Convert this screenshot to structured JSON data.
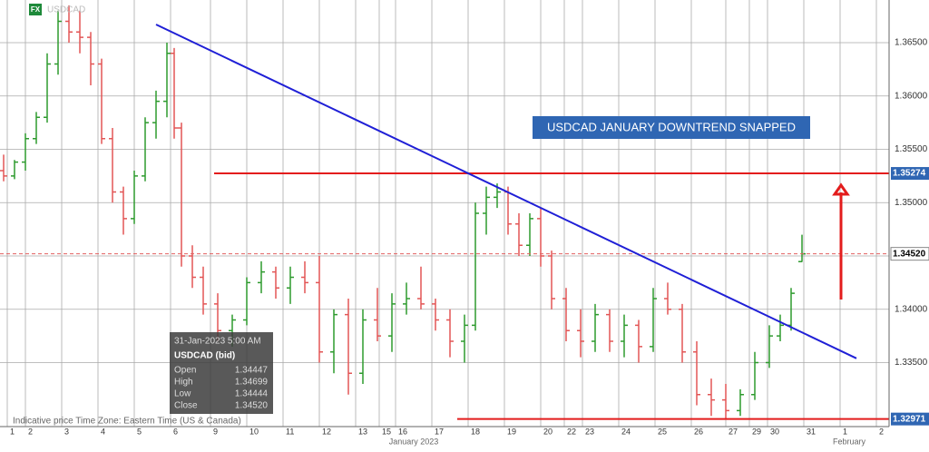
{
  "chart_data": {
    "type": "ohlc",
    "symbol": "USDCAD",
    "badge": "FX",
    "annotation": "USDCAD JANUARY DOWNTREND SNAPPED",
    "footer": "Indicative price   Time Zone: Eastern Time (US & Canada)",
    "month_labels": [
      {
        "value": 11.2,
        "label": "January 2023"
      },
      {
        "value": 23.2,
        "label": "February"
      }
    ],
    "xlim": [
      -0.2,
      24.3
    ],
    "ylim": [
      1.329,
      1.369
    ],
    "grid": true,
    "xticks": [
      {
        "value": 0,
        "label": "1"
      },
      {
        "value": 0.5,
        "label": "2"
      },
      {
        "value": 1.5,
        "label": "3"
      },
      {
        "value": 2.5,
        "label": "4"
      },
      {
        "value": 3.5,
        "label": "5"
      },
      {
        "value": 4.5,
        "label": "6"
      },
      {
        "value": 5.6,
        "label": "9"
      },
      {
        "value": 6.6,
        "label": "10"
      },
      {
        "value": 7.6,
        "label": "11"
      },
      {
        "value": 8.6,
        "label": "12"
      },
      {
        "value": 9.6,
        "label": "13"
      },
      {
        "value": 10.25,
        "label": "15"
      },
      {
        "value": 10.7,
        "label": "16"
      },
      {
        "value": 11.7,
        "label": "17"
      },
      {
        "value": 12.7,
        "label": "18"
      },
      {
        "value": 13.7,
        "label": "19"
      },
      {
        "value": 14.7,
        "label": "20"
      },
      {
        "value": 15.35,
        "label": "22"
      },
      {
        "value": 15.85,
        "label": "23"
      },
      {
        "value": 16.85,
        "label": "24"
      },
      {
        "value": 17.85,
        "label": "25"
      },
      {
        "value": 18.85,
        "label": "26"
      },
      {
        "value": 19.8,
        "label": "27"
      },
      {
        "value": 20.45,
        "label": "29"
      },
      {
        "value": 20.95,
        "label": "30"
      },
      {
        "value": 21.95,
        "label": "31"
      },
      {
        "value": 22.95,
        "label": "1"
      },
      {
        "value": 23.95,
        "label": "2"
      }
    ],
    "yticks": [
      {
        "value": 1.335,
        "label": "1.33500"
      },
      {
        "value": 1.34,
        "label": "1.34000"
      },
      {
        "value": 1.345,
        "label": "1.34500"
      },
      {
        "value": 1.35,
        "label": "1.35000"
      },
      {
        "value": 1.355,
        "label": "1.35500"
      },
      {
        "value": 1.36,
        "label": "1.36000"
      },
      {
        "value": 1.365,
        "label": "1.36500"
      }
    ],
    "up_color": "#2e9a2e",
    "down_color": "#e25555",
    "ohlc": {
      "x": [
        -0.1,
        0.2,
        0.5,
        0.8,
        1.1,
        1.4,
        1.7,
        2.0,
        2.3,
        2.6,
        2.9,
        3.2,
        3.5,
        3.8,
        4.1,
        4.4,
        4.6,
        4.8,
        5.1,
        5.4,
        5.8,
        6.2,
        6.6,
        7.0,
        7.4,
        7.8,
        8.2,
        8.6,
        9.0,
        9.4,
        9.8,
        10.2,
        10.6,
        11.0,
        11.4,
        11.8,
        12.2,
        12.6,
        12.9,
        13.2,
        13.5,
        13.8,
        14.1,
        14.4,
        14.7,
        15.0,
        15.4,
        15.8,
        16.2,
        16.6,
        17.0,
        17.4,
        17.8,
        18.2,
        18.6,
        19.0,
        19.4,
        19.8,
        20.2,
        20.6,
        21.0,
        21.3,
        21.6,
        21.9
      ],
      "open": [
        1.353,
        1.3525,
        1.3538,
        1.356,
        1.358,
        1.363,
        1.367,
        1.366,
        1.3655,
        1.363,
        1.356,
        1.351,
        1.3485,
        1.3525,
        1.3575,
        1.3595,
        1.364,
        1.357,
        1.345,
        1.343,
        1.3405,
        1.338,
        1.339,
        1.3425,
        1.3435,
        1.342,
        1.343,
        1.3425,
        1.336,
        1.3395,
        1.334,
        1.339,
        1.3375,
        1.3405,
        1.341,
        1.3405,
        1.339,
        1.337,
        1.3385,
        1.349,
        1.3505,
        1.351,
        1.348,
        1.346,
        1.3485,
        1.345,
        1.341,
        1.338,
        1.337,
        1.3395,
        1.337,
        1.3385,
        1.3365,
        1.341,
        1.34,
        1.336,
        1.332,
        1.3315,
        1.3305,
        1.332,
        1.335,
        1.3375,
        1.3385,
        1.34447
      ],
      "high": [
        1.3545,
        1.354,
        1.3565,
        1.3585,
        1.364,
        1.368,
        1.3685,
        1.368,
        1.366,
        1.3635,
        1.357,
        1.3515,
        1.353,
        1.358,
        1.3605,
        1.365,
        1.3645,
        1.3575,
        1.346,
        1.344,
        1.3415,
        1.3395,
        1.343,
        1.3445,
        1.344,
        1.344,
        1.3445,
        1.345,
        1.34,
        1.341,
        1.34,
        1.342,
        1.3415,
        1.3425,
        1.344,
        1.341,
        1.34,
        1.3395,
        1.35,
        1.3515,
        1.3518,
        1.3515,
        1.349,
        1.349,
        1.3495,
        1.3455,
        1.342,
        1.34,
        1.3405,
        1.34,
        1.3395,
        1.339,
        1.342,
        1.3425,
        1.3405,
        1.337,
        1.3335,
        1.333,
        1.3325,
        1.336,
        1.3385,
        1.3395,
        1.342,
        1.34699
      ],
      "low": [
        1.352,
        1.3522,
        1.353,
        1.3555,
        1.3575,
        1.362,
        1.365,
        1.364,
        1.361,
        1.3555,
        1.35,
        1.347,
        1.348,
        1.352,
        1.356,
        1.358,
        1.356,
        1.344,
        1.342,
        1.3395,
        1.337,
        1.3365,
        1.3385,
        1.3415,
        1.341,
        1.3405,
        1.3415,
        1.335,
        1.334,
        1.332,
        1.333,
        1.337,
        1.336,
        1.3395,
        1.34,
        1.338,
        1.3355,
        1.335,
        1.338,
        1.347,
        1.3495,
        1.347,
        1.345,
        1.345,
        1.344,
        1.34,
        1.337,
        1.3355,
        1.336,
        1.336,
        1.3355,
        1.335,
        1.336,
        1.3395,
        1.335,
        1.331,
        1.33,
        1.3297,
        1.33,
        1.3315,
        1.3345,
        1.337,
        1.338,
        1.34444
      ],
      "close": [
        1.3525,
        1.3538,
        1.356,
        1.358,
        1.363,
        1.367,
        1.366,
        1.3655,
        1.363,
        1.356,
        1.351,
        1.3485,
        1.3525,
        1.3575,
        1.3595,
        1.364,
        1.357,
        1.345,
        1.343,
        1.3405,
        1.338,
        1.339,
        1.3425,
        1.3435,
        1.342,
        1.343,
        1.3425,
        1.336,
        1.3395,
        1.334,
        1.339,
        1.3375,
        1.3405,
        1.341,
        1.3405,
        1.339,
        1.337,
        1.3385,
        1.349,
        1.3505,
        1.351,
        1.348,
        1.346,
        1.3485,
        1.345,
        1.341,
        1.338,
        1.337,
        1.3395,
        1.337,
        1.3385,
        1.3365,
        1.341,
        1.34,
        1.336,
        1.332,
        1.3315,
        1.3305,
        1.332,
        1.335,
        1.3375,
        1.3385,
        1.3415,
        1.3452
      ]
    },
    "trendline": {
      "x": [
        4.1,
        23.4
      ],
      "y": [
        1.3667,
        1.3354
      ],
      "color": "#1f1fd6"
    },
    "levels": [
      {
        "value": 1.35274,
        "label": "1.35274",
        "start": 5.7,
        "color": "#e31c1c",
        "style": "solid"
      },
      {
        "value": 1.3452,
        "label": "1.34520",
        "start": -0.2,
        "color": "#e36060",
        "style": "dashed"
      },
      {
        "value": 1.32971,
        "label": "1.32971",
        "start": 12.4,
        "color": "#e31c1c",
        "style": "solid"
      }
    ],
    "tooltip": {
      "time": "31-Jan-2023 5:00 AM",
      "name": "USDCAD (bid)",
      "rows": [
        {
          "label": "Open",
          "value": "1.34447"
        },
        {
          "label": "High",
          "value": "1.34699"
        },
        {
          "label": "Low",
          "value": "1.34444"
        },
        {
          "label": "Close",
          "value": "1.34520"
        }
      ]
    }
  }
}
